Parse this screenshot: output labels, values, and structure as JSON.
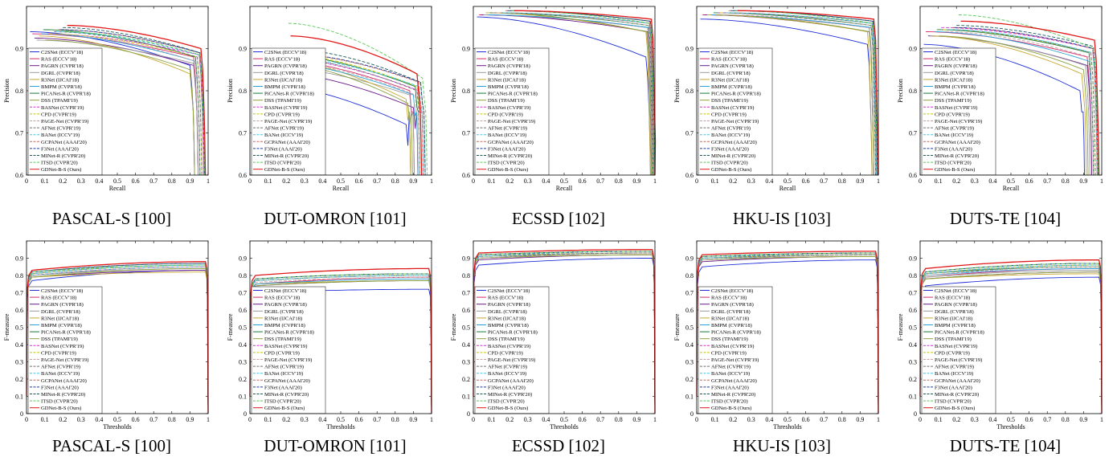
{
  "captions": [
    "PASCAL-S [100]",
    "DUT-OMRON [101]",
    "ECSSD [102]",
    "HKU-IS [103]",
    "DUTS-TE [104]"
  ],
  "series": [
    {
      "name": "C2SNet (ECCV'18)",
      "color": "#1f2fd8",
      "dash": "solid"
    },
    {
      "name": "RAS (ECCV'18)",
      "color": "#d42a6a",
      "dash": "solid"
    },
    {
      "name": "PAGRN (CVPR'18)",
      "color": "#6a1a8a",
      "dash": "solid"
    },
    {
      "name": "DGRL (CVPR'18)",
      "color": "#9a9a9a",
      "dash": "solid"
    },
    {
      "name": "R3Net (IJCAI'18)",
      "color": "#c8a830",
      "dash": "solid"
    },
    {
      "name": "BMPM (CVPR'18)",
      "color": "#2aa0d8",
      "dash": "solid"
    },
    {
      "name": "PiCANet-R (CVPR'18)",
      "color": "#1a7a3a",
      "dash": "solid"
    },
    {
      "name": "DSS (TPAMI'19)",
      "color": "#8aa040",
      "dash": "solid"
    },
    {
      "name": "BASNet (CVPR'19)",
      "color": "#d82ad8",
      "dash": "dashed"
    },
    {
      "name": "CPD (CVPR'19)",
      "color": "#c8c800",
      "dash": "dashed"
    },
    {
      "name": "PAGE-Net (CVPR'19)",
      "color": "#c8a0a0",
      "dash": "dashed"
    },
    {
      "name": "AFNet (CVPR'19)",
      "color": "#707070",
      "dash": "dashed"
    },
    {
      "name": "BANet (ICCV'19)",
      "color": "#40c8e8",
      "dash": "dashed"
    },
    {
      "name": "GCPANet (AAAI'20)",
      "color": "#c86a5a",
      "dash": "dashed"
    },
    {
      "name": "F3Net (AAAI'20)",
      "color": "#1a3aa0",
      "dash": "dashed"
    },
    {
      "name": "MINet-R (CVPR'20)",
      "color": "#1a5a5a",
      "dash": "dashed"
    },
    {
      "name": "ITSD (CVPR'20)",
      "color": "#58c858",
      "dash": "dashed"
    },
    {
      "name": "GDNet-B-S (Ours)",
      "color": "#e01818",
      "dash": "solid"
    }
  ],
  "axes": {
    "pr_xlabel": "Recall",
    "pr_ylabel": "Precision",
    "fm_xlabel": "Thresholds",
    "fm_ylabel": "F-measure",
    "x_ticks": [
      "0",
      "0.1",
      "0.2",
      "0.3",
      "0.4",
      "0.5",
      "0.6",
      "0.7",
      "0.8",
      "0.9",
      "1"
    ],
    "pr_y_ticks": [
      "0.6",
      "0.7",
      "0.8",
      "0.9"
    ],
    "fm_y_ticks": [
      "0",
      "0.1",
      "0.2",
      "0.3",
      "0.4",
      "0.5",
      "0.6",
      "0.7",
      "0.8",
      "0.9"
    ]
  },
  "chart_data": [
    {
      "type": "line",
      "title": "PASCAL-S [100]",
      "xlabel": "Recall",
      "ylabel": "Precision",
      "xlim": [
        0,
        1
      ],
      "ylim": [
        0.6,
        1
      ],
      "curves": [
        {
          "p0": 0.94,
          "p1": 0.86,
          "rmax": 0.9
        },
        {
          "p0": 0.935,
          "p1": 0.88,
          "rmax": 0.92
        },
        {
          "p0": 0.925,
          "p1": 0.86,
          "rmax": 0.92
        },
        {
          "p0": 0.92,
          "p1": 0.865,
          "rmax": 0.92
        },
        {
          "p0": 0.93,
          "p1": 0.84,
          "rmax": 0.9
        },
        {
          "p0": 0.935,
          "p1": 0.87,
          "rmax": 0.93
        },
        {
          "p0": 0.945,
          "p1": 0.88,
          "rmax": 0.93
        },
        {
          "p0": 0.92,
          "p1": 0.85,
          "rmax": 0.9
        },
        {
          "p0": 0.935,
          "p1": 0.885,
          "rmax": 0.95
        },
        {
          "p0": 0.935,
          "p1": 0.88,
          "rmax": 0.94
        },
        {
          "p0": 0.935,
          "p1": 0.87,
          "rmax": 0.93
        },
        {
          "p0": 0.94,
          "p1": 0.88,
          "rmax": 0.94
        },
        {
          "p0": 0.94,
          "p1": 0.885,
          "rmax": 0.95
        },
        {
          "p0": 0.945,
          "p1": 0.89,
          "rmax": 0.95
        },
        {
          "p0": 0.945,
          "p1": 0.89,
          "rmax": 0.955
        },
        {
          "p0": 0.95,
          "p1": 0.89,
          "rmax": 0.955
        },
        {
          "p0": 0.94,
          "p1": 0.885,
          "rmax": 0.955
        },
        {
          "p0": 0.955,
          "p1": 0.9,
          "rmax": 0.96
        }
      ]
    },
    {
      "type": "line",
      "title": "DUT-OMRON [101]",
      "xlabel": "Recall",
      "ylabel": "Precision",
      "xlim": [
        0,
        1
      ],
      "ylim": [
        0.6,
        1
      ],
      "curves": [
        {
          "p0": 0.82,
          "p1": 0.72,
          "rmax": 0.86
        },
        {
          "p0": 0.88,
          "p1": 0.8,
          "rmax": 0.88
        },
        {
          "p0": 0.85,
          "p1": 0.76,
          "rmax": 0.9
        },
        {
          "p0": 0.86,
          "p1": 0.79,
          "rmax": 0.88
        },
        {
          "p0": 0.88,
          "p1": 0.78,
          "rmax": 0.86
        },
        {
          "p0": 0.87,
          "p1": 0.79,
          "rmax": 0.9
        },
        {
          "p0": 0.89,
          "p1": 0.81,
          "rmax": 0.91
        },
        {
          "p0": 0.87,
          "p1": 0.77,
          "rmax": 0.87
        },
        {
          "p0": 0.88,
          "p1": 0.8,
          "rmax": 0.93
        },
        {
          "p0": 0.89,
          "p1": 0.81,
          "rmax": 0.92
        },
        {
          "p0": 0.87,
          "p1": 0.79,
          "rmax": 0.91
        },
        {
          "p0": 0.88,
          "p1": 0.8,
          "rmax": 0.92
        },
        {
          "p0": 0.88,
          "p1": 0.81,
          "rmax": 0.93
        },
        {
          "p0": 0.89,
          "p1": 0.82,
          "rmax": 0.93
        },
        {
          "p0": 0.89,
          "p1": 0.82,
          "rmax": 0.94
        },
        {
          "p0": 0.9,
          "p1": 0.82,
          "rmax": 0.94
        },
        {
          "p0": 0.96,
          "p1": 0.83,
          "rmax": 0.95
        },
        {
          "p0": 0.93,
          "p1": 0.84,
          "rmax": 0.92
        }
      ]
    },
    {
      "type": "line",
      "title": "ECSSD [102]",
      "xlabel": "Recall",
      "ylabel": "Precision",
      "xlim": [
        0,
        1
      ],
      "ylim": [
        0.6,
        1
      ],
      "curves": [
        {
          "p0": 0.975,
          "p1": 0.88,
          "rmax": 0.95
        },
        {
          "p0": 0.98,
          "p1": 0.95,
          "rmax": 0.96
        },
        {
          "p0": 0.98,
          "p1": 0.94,
          "rmax": 0.96
        },
        {
          "p0": 0.98,
          "p1": 0.95,
          "rmax": 0.96
        },
        {
          "p0": 0.985,
          "p1": 0.94,
          "rmax": 0.95
        },
        {
          "p0": 0.98,
          "p1": 0.95,
          "rmax": 0.965
        },
        {
          "p0": 0.985,
          "p1": 0.955,
          "rmax": 0.965
        },
        {
          "p0": 0.985,
          "p1": 0.94,
          "rmax": 0.955
        },
        {
          "p0": 0.985,
          "p1": 0.96,
          "rmax": 0.97
        },
        {
          "p0": 0.985,
          "p1": 0.96,
          "rmax": 0.97
        },
        {
          "p0": 0.985,
          "p1": 0.955,
          "rmax": 0.965
        },
        {
          "p0": 0.985,
          "p1": 0.96,
          "rmax": 0.97
        },
        {
          "p0": 0.985,
          "p1": 0.96,
          "rmax": 0.97
        },
        {
          "p0": 0.99,
          "p1": 0.965,
          "rmax": 0.97
        },
        {
          "p0": 0.99,
          "p1": 0.965,
          "rmax": 0.975
        },
        {
          "p0": 0.99,
          "p1": 0.965,
          "rmax": 0.975
        },
        {
          "p0": 0.99,
          "p1": 0.96,
          "rmax": 0.975
        },
        {
          "p0": 0.99,
          "p1": 0.97,
          "rmax": 0.98
        }
      ]
    },
    {
      "type": "line",
      "title": "HKU-IS [103]",
      "xlabel": "Recall",
      "ylabel": "Precision",
      "xlim": [
        0,
        1
      ],
      "ylim": [
        0.6,
        1
      ],
      "curves": [
        {
          "p0": 0.97,
          "p1": 0.91,
          "rmax": 0.94
        },
        {
          "p0": 0.98,
          "p1": 0.95,
          "rmax": 0.95
        },
        {
          "p0": 0.98,
          "p1": 0.94,
          "rmax": 0.95
        },
        {
          "p0": 0.98,
          "p1": 0.95,
          "rmax": 0.95
        },
        {
          "p0": 0.98,
          "p1": 0.94,
          "rmax": 0.94
        },
        {
          "p0": 0.98,
          "p1": 0.95,
          "rmax": 0.96
        },
        {
          "p0": 0.985,
          "p1": 0.955,
          "rmax": 0.96
        },
        {
          "p0": 0.98,
          "p1": 0.94,
          "rmax": 0.95
        },
        {
          "p0": 0.985,
          "p1": 0.96,
          "rmax": 0.965
        },
        {
          "p0": 0.985,
          "p1": 0.96,
          "rmax": 0.965
        },
        {
          "p0": 0.98,
          "p1": 0.955,
          "rmax": 0.96
        },
        {
          "p0": 0.985,
          "p1": 0.96,
          "rmax": 0.965
        },
        {
          "p0": 0.985,
          "p1": 0.96,
          "rmax": 0.965
        },
        {
          "p0": 0.99,
          "p1": 0.965,
          "rmax": 0.97
        },
        {
          "p0": 0.99,
          "p1": 0.965,
          "rmax": 0.97
        },
        {
          "p0": 0.99,
          "p1": 0.965,
          "rmax": 0.97
        },
        {
          "p0": 0.99,
          "p1": 0.96,
          "rmax": 0.97
        },
        {
          "p0": 0.99,
          "p1": 0.97,
          "rmax": 0.975
        }
      ]
    },
    {
      "type": "line",
      "title": "DUTS-TE [104]",
      "xlabel": "Recall",
      "ylabel": "Precision",
      "xlim": [
        0,
        1
      ],
      "ylim": [
        0.6,
        1
      ],
      "curves": [
        {
          "p0": 0.91,
          "p1": 0.8,
          "rmax": 0.88
        },
        {
          "p0": 0.94,
          "p1": 0.88,
          "rmax": 0.92
        },
        {
          "p0": 0.93,
          "p1": 0.86,
          "rmax": 0.92
        },
        {
          "p0": 0.93,
          "p1": 0.86,
          "rmax": 0.91
        },
        {
          "p0": 0.93,
          "p1": 0.84,
          "rmax": 0.89
        },
        {
          "p0": 0.94,
          "p1": 0.87,
          "rmax": 0.93
        },
        {
          "p0": 0.945,
          "p1": 0.89,
          "rmax": 0.93
        },
        {
          "p0": 0.93,
          "p1": 0.85,
          "rmax": 0.9
        },
        {
          "p0": 0.95,
          "p1": 0.9,
          "rmax": 0.95
        },
        {
          "p0": 0.945,
          "p1": 0.89,
          "rmax": 0.94
        },
        {
          "p0": 0.94,
          "p1": 0.88,
          "rmax": 0.93
        },
        {
          "p0": 0.945,
          "p1": 0.89,
          "rmax": 0.94
        },
        {
          "p0": 0.945,
          "p1": 0.89,
          "rmax": 0.95
        },
        {
          "p0": 0.95,
          "p1": 0.9,
          "rmax": 0.95
        },
        {
          "p0": 0.95,
          "p1": 0.9,
          "rmax": 0.955
        },
        {
          "p0": 0.955,
          "p1": 0.905,
          "rmax": 0.955
        },
        {
          "p0": 0.98,
          "p1": 0.9,
          "rmax": 0.955
        },
        {
          "p0": 0.965,
          "p1": 0.92,
          "rmax": 0.96
        }
      ]
    },
    {
      "type": "line",
      "title": "PASCAL-S [100]",
      "xlabel": "Thresholds",
      "ylabel": "F-measure",
      "xlim": [
        0,
        1
      ],
      "ylim": [
        0,
        1
      ],
      "levels": [
        [
          0.77,
          0.83
        ],
        [
          0.8,
          0.85
        ],
        [
          0.79,
          0.83
        ],
        [
          0.8,
          0.84
        ],
        [
          0.79,
          0.82
        ],
        [
          0.8,
          0.85
        ],
        [
          0.81,
          0.86
        ],
        [
          0.79,
          0.84
        ],
        [
          0.81,
          0.86
        ],
        [
          0.81,
          0.86
        ],
        [
          0.8,
          0.85
        ],
        [
          0.81,
          0.86
        ],
        [
          0.81,
          0.86
        ],
        [
          0.82,
          0.87
        ],
        [
          0.82,
          0.87
        ],
        [
          0.82,
          0.87
        ],
        [
          0.82,
          0.86
        ],
        [
          0.83,
          0.88
        ]
      ]
    },
    {
      "type": "line",
      "title": "DUT-OMRON [101]",
      "xlabel": "Thresholds",
      "ylabel": "F-measure",
      "xlim": [
        0,
        1
      ],
      "ylim": [
        0,
        1
      ],
      "levels": [
        [
          0.7,
          0.72
        ],
        [
          0.75,
          0.79
        ],
        [
          0.74,
          0.77
        ],
        [
          0.75,
          0.78
        ],
        [
          0.75,
          0.77
        ],
        [
          0.75,
          0.78
        ],
        [
          0.77,
          0.8
        ],
        [
          0.74,
          0.77
        ],
        [
          0.77,
          0.8
        ],
        [
          0.77,
          0.8
        ],
        [
          0.76,
          0.79
        ],
        [
          0.77,
          0.8
        ],
        [
          0.77,
          0.8
        ],
        [
          0.78,
          0.81
        ],
        [
          0.78,
          0.81
        ],
        [
          0.78,
          0.81
        ],
        [
          0.78,
          0.81
        ],
        [
          0.8,
          0.84
        ]
      ]
    },
    {
      "type": "line",
      "title": "ECSSD [102]",
      "xlabel": "Thresholds",
      "ylabel": "F-measure",
      "xlim": [
        0,
        1
      ],
      "ylim": [
        0,
        1
      ],
      "levels": [
        [
          0.86,
          0.9
        ],
        [
          0.9,
          0.92
        ],
        [
          0.89,
          0.92
        ],
        [
          0.9,
          0.92
        ],
        [
          0.9,
          0.92
        ],
        [
          0.9,
          0.93
        ],
        [
          0.91,
          0.93
        ],
        [
          0.9,
          0.92
        ],
        [
          0.91,
          0.94
        ],
        [
          0.91,
          0.93
        ],
        [
          0.9,
          0.93
        ],
        [
          0.91,
          0.93
        ],
        [
          0.91,
          0.94
        ],
        [
          0.92,
          0.94
        ],
        [
          0.92,
          0.94
        ],
        [
          0.92,
          0.94
        ],
        [
          0.92,
          0.94
        ],
        [
          0.93,
          0.95
        ]
      ]
    },
    {
      "type": "line",
      "title": "HKU-IS [103]",
      "xlabel": "Thresholds",
      "ylabel": "F-measure",
      "xlim": [
        0,
        1
      ],
      "ylim": [
        0,
        1
      ],
      "levels": [
        [
          0.85,
          0.89
        ],
        [
          0.89,
          0.91
        ],
        [
          0.88,
          0.91
        ],
        [
          0.89,
          0.91
        ],
        [
          0.89,
          0.91
        ],
        [
          0.89,
          0.92
        ],
        [
          0.9,
          0.92
        ],
        [
          0.89,
          0.91
        ],
        [
          0.9,
          0.93
        ],
        [
          0.9,
          0.92
        ],
        [
          0.89,
          0.92
        ],
        [
          0.9,
          0.92
        ],
        [
          0.9,
          0.93
        ],
        [
          0.91,
          0.93
        ],
        [
          0.91,
          0.93
        ],
        [
          0.91,
          0.93
        ],
        [
          0.91,
          0.93
        ],
        [
          0.92,
          0.94
        ]
      ]
    },
    {
      "type": "line",
      "title": "DUTS-TE [104]",
      "xlabel": "Thresholds",
      "ylabel": "F-measure",
      "xlim": [
        0,
        1
      ],
      "ylim": [
        0,
        1
      ],
      "levels": [
        [
          0.74,
          0.79
        ],
        [
          0.79,
          0.84
        ],
        [
          0.78,
          0.82
        ],
        [
          0.79,
          0.83
        ],
        [
          0.78,
          0.81
        ],
        [
          0.8,
          0.84
        ],
        [
          0.81,
          0.85
        ],
        [
          0.78,
          0.82
        ],
        [
          0.81,
          0.86
        ],
        [
          0.81,
          0.86
        ],
        [
          0.8,
          0.85
        ],
        [
          0.81,
          0.86
        ],
        [
          0.81,
          0.86
        ],
        [
          0.82,
          0.87
        ],
        [
          0.82,
          0.87
        ],
        [
          0.82,
          0.87
        ],
        [
          0.82,
          0.87
        ],
        [
          0.84,
          0.89
        ]
      ]
    }
  ]
}
